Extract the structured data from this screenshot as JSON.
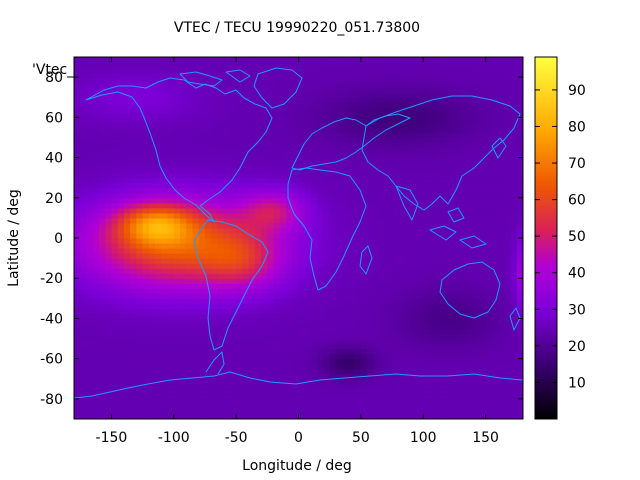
{
  "chart_data": {
    "type": "heatmap",
    "title": "VTEC / TECU 19990220_051.73800",
    "xlabel": "Longitude / deg",
    "ylabel": "Latitude / deg",
    "xlim": [
      -180,
      180
    ],
    "ylim": [
      -90,
      90
    ],
    "x_ticks": [
      -150,
      -100,
      -50,
      0,
      50,
      100,
      150
    ],
    "x_tick_labels": [
      "-150",
      "-100",
      "-50",
      "0",
      "50",
      "100",
      "150"
    ],
    "y_ticks": [
      -80,
      -60,
      -40,
      -20,
      0,
      20,
      40,
      60,
      80
    ],
    "y_tick_labels": [
      "-80",
      "-60",
      "-40",
      "-20",
      "0",
      "20",
      "40",
      "60",
      "80"
    ],
    "colorbar": {
      "range": [
        0,
        99
      ],
      "ticks": [
        10,
        20,
        30,
        40,
        50,
        60,
        70,
        80,
        90
      ],
      "tick_labels": [
        "10",
        "20",
        "30",
        "40",
        "50",
        "60",
        "70",
        "80",
        "90"
      ],
      "palette": [
        "#000000",
        "#3a0072",
        "#7d00d9",
        "#b000d6",
        "#d9205a",
        "#ef5a00",
        "#ffaa00",
        "#ffff40"
      ]
    },
    "series_label": "'Vtec_",
    "grid": false,
    "legend": "top-left",
    "peak": {
      "lon": -110,
      "lat": 7,
      "value": 99
    },
    "features": [
      {
        "name": "equatorial anomaly band",
        "lon_range": [
          -180,
          20
        ],
        "lat_range": [
          -35,
          25
        ],
        "value_range": [
          60,
          95
        ]
      },
      {
        "name": "eastern hemisphere night-side",
        "lon_range": [
          30,
          180
        ],
        "lat_range": [
          -60,
          60
        ],
        "value_range": [
          8,
          30
        ]
      },
      {
        "name": "eastern limb enhancement",
        "lon": 178,
        "lat": -20,
        "value": 45
      }
    ]
  },
  "map": {
    "coastlines": "world",
    "coast_color": "#1e9bff"
  }
}
